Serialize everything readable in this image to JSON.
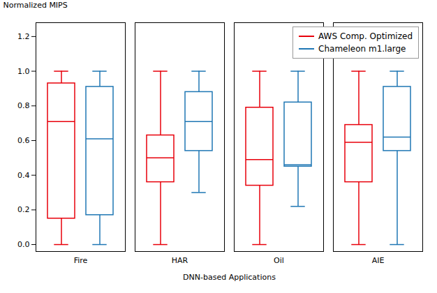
{
  "chart_data": {
    "type": "box",
    "xlabel": "DNN-based Applications",
    "ylabel": "Normalized MIPS",
    "categories": [
      "Fire",
      "HAR",
      "Oil",
      "AIE"
    ],
    "series": [
      {
        "name": "AWS Comp. Optimized",
        "color": "#E8000B",
        "values": [
          {
            "whisker_low": 0.0,
            "q1": 0.15,
            "median": 0.71,
            "q3": 0.93,
            "whisker_high": 1.0
          },
          {
            "whisker_low": 0.0,
            "q1": 0.36,
            "median": 0.5,
            "q3": 0.63,
            "whisker_high": 1.0
          },
          {
            "whisker_low": 0.0,
            "q1": 0.34,
            "median": 0.49,
            "q3": 0.79,
            "whisker_high": 1.0
          },
          {
            "whisker_low": 0.0,
            "q1": 0.36,
            "median": 0.59,
            "q3": 0.69,
            "whisker_high": 1.0
          }
        ]
      },
      {
        "name": "Chameleon m1.large",
        "color": "#1F77B4",
        "values": [
          {
            "whisker_low": 0.0,
            "q1": 0.17,
            "median": 0.61,
            "q3": 0.91,
            "whisker_high": 1.0
          },
          {
            "whisker_low": 0.3,
            "q1": 0.54,
            "median": 0.71,
            "q3": 0.88,
            "whisker_high": 1.0
          },
          {
            "whisker_low": 0.22,
            "q1": 0.45,
            "median": 0.46,
            "q3": 0.82,
            "whisker_high": 1.0
          },
          {
            "whisker_low": 0.0,
            "q1": 0.54,
            "median": 0.62,
            "q3": 0.91,
            "whisker_high": 1.0
          }
        ]
      }
    ],
    "ylim": [
      -0.04,
      1.28
    ],
    "yticks": [
      {
        "value": 0.0,
        "label": "0.0"
      },
      0.2,
      0.4,
      0.6,
      0.8,
      {
        "value": 1.0,
        "label": "1.0"
      },
      1.2
    ],
    "grid": false,
    "legend": "upper right"
  }
}
